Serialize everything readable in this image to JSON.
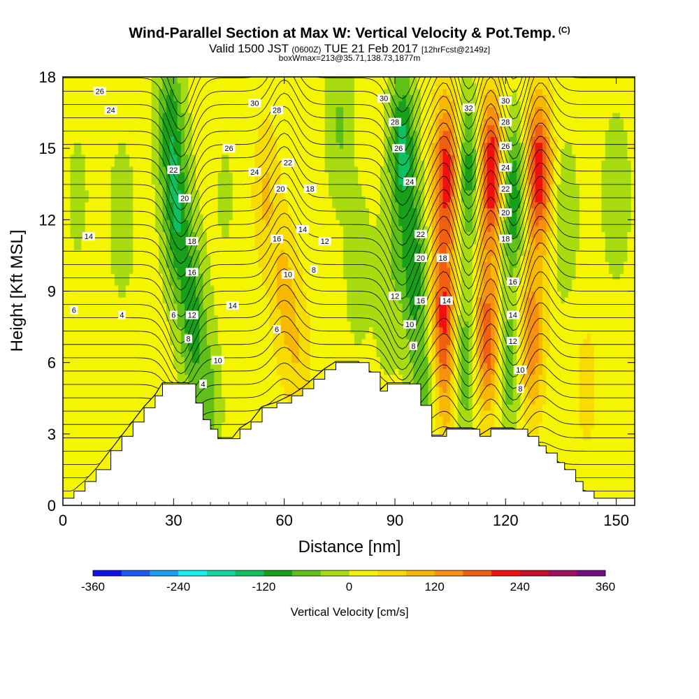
{
  "header": {
    "title": "Wind-Parallel Section at Max W: Vertical Velocity & Pot.Temp.",
    "title_mark": "(C)",
    "valid_a": "Valid 1500 JST",
    "valid_b": "(0600Z)",
    "valid_c": "TUE 21 Feb 2017",
    "valid_d": "[12hrFcst@2149z]",
    "subtitle": "boxWmax=213@35.71,138.73,1877m"
  },
  "chart_data": {
    "type": "heatmap",
    "xlabel": "Distance [nm]",
    "ylabel": "Height [Kft MSL]",
    "xlim": [
      0,
      155
    ],
    "ylim": [
      0,
      18
    ],
    "x_ticks": [
      0,
      30,
      60,
      90,
      120,
      150
    ],
    "y_ticks": [
      0,
      3,
      6,
      9,
      12,
      15,
      18
    ],
    "colorbar": {
      "label": "Vertical Velocity [cm/s]",
      "range": [
        -360,
        360
      ],
      "tick_values": [
        -360,
        -240,
        -120,
        0,
        120,
        240,
        360
      ],
      "tick_labels": [
        "-360",
        "-240",
        "-120",
        "0",
        "120",
        "240",
        "360"
      ],
      "colors": [
        "#1010e8",
        "#1a5cf0",
        "#1aa0f5",
        "#10f0f0",
        "#10d8a0",
        "#10c060",
        "#18a018",
        "#60c018",
        "#a8dc10",
        "#f5f500",
        "#f8dc00",
        "#f8b800",
        "#f89010",
        "#f06010",
        "#f01010",
        "#c8102c",
        "#a01060",
        "#701080"
      ]
    },
    "terrain_kft": [
      [
        0,
        0.3
      ],
      [
        3,
        0.6
      ],
      [
        6,
        1.0
      ],
      [
        9,
        1.5
      ],
      [
        13,
        2.3
      ],
      [
        16,
        2.9
      ],
      [
        19,
        3.5
      ],
      [
        22,
        4.1
      ],
      [
        25,
        4.6
      ],
      [
        27,
        5.1
      ],
      [
        30,
        5.1
      ],
      [
        34,
        5.1
      ],
      [
        36,
        4.3
      ],
      [
        38,
        3.6
      ],
      [
        40,
        3.2
      ],
      [
        42,
        2.8
      ],
      [
        46,
        2.8
      ],
      [
        48,
        3.2
      ],
      [
        51,
        3.5
      ],
      [
        54,
        4.1
      ],
      [
        58,
        4.3
      ],
      [
        62,
        4.6
      ],
      [
        65,
        4.9
      ],
      [
        68,
        5.3
      ],
      [
        71,
        5.7
      ],
      [
        74,
        6.0
      ],
      [
        80,
        6.0
      ],
      [
        83,
        5.6
      ],
      [
        86,
        4.8
      ],
      [
        88,
        5.1
      ],
      [
        94,
        5.1
      ],
      [
        97,
        4.2
      ],
      [
        100,
        2.9
      ],
      [
        103,
        2.9
      ],
      [
        104,
        3.2
      ],
      [
        111,
        3.2
      ],
      [
        113,
        2.9
      ],
      [
        116,
        3.2
      ],
      [
        122,
        3.2
      ],
      [
        126,
        2.9
      ],
      [
        129,
        2.5
      ],
      [
        131,
        2.2
      ],
      [
        134,
        1.8
      ],
      [
        136,
        1.5
      ],
      [
        139,
        1.0
      ],
      [
        141,
        0.6
      ],
      [
        144,
        0.3
      ],
      [
        155,
        0.3
      ]
    ],
    "w_field": {
      "background": 15,
      "features": [
        {
          "x": 4,
          "z": 13,
          "w": -25
        },
        {
          "x": 8,
          "z": 4,
          "w": 25
        },
        {
          "x": 16,
          "z": 12,
          "w": -40
        },
        {
          "x": 29,
          "z": 16,
          "w": -110
        },
        {
          "x": 31,
          "z": 12,
          "w": -120
        },
        {
          "x": 35,
          "z": 8,
          "w": -110
        },
        {
          "x": 39,
          "z": 4,
          "w": -80
        },
        {
          "x": 44,
          "z": 13,
          "w": -20
        },
        {
          "x": 55,
          "z": 13,
          "w": 70
        },
        {
          "x": 60,
          "z": 9,
          "w": 75
        },
        {
          "x": 64,
          "z": 6,
          "w": 55
        },
        {
          "x": 75,
          "z": 16,
          "w": -60
        },
        {
          "x": 80,
          "z": 10,
          "w": -40
        },
        {
          "x": 88,
          "z": 9,
          "w": -50
        },
        {
          "x": 92,
          "z": 15,
          "w": -150
        },
        {
          "x": 95,
          "z": 10,
          "w": -120
        },
        {
          "x": 98,
          "z": 5,
          "w": -90
        },
        {
          "x": 104,
          "z": 14,
          "w": 210
        },
        {
          "x": 103,
          "z": 8,
          "w": 190
        },
        {
          "x": 104,
          "z": 4,
          "w": 60
        },
        {
          "x": 110,
          "z": 14,
          "w": -130
        },
        {
          "x": 109,
          "z": 6,
          "w": -100
        },
        {
          "x": 116,
          "z": 14,
          "w": 240
        },
        {
          "x": 115,
          "z": 7,
          "w": 180
        },
        {
          "x": 122,
          "z": 13,
          "w": -140
        },
        {
          "x": 121,
          "z": 6,
          "w": -90
        },
        {
          "x": 129,
          "z": 14,
          "w": 220
        },
        {
          "x": 127,
          "z": 7,
          "w": 140
        },
        {
          "x": 136,
          "z": 12,
          "w": -50
        },
        {
          "x": 142,
          "z": 5,
          "w": 40
        },
        {
          "x": 150,
          "z": 13,
          "w": -50
        }
      ]
    },
    "theta_labels": [
      {
        "x": 10,
        "z": 17.4,
        "text": "26"
      },
      {
        "x": 13,
        "z": 16.6,
        "text": "24"
      },
      {
        "x": 7,
        "z": 11.3,
        "text": "14"
      },
      {
        "x": 3,
        "z": 8.2,
        "text": "6"
      },
      {
        "x": 16,
        "z": 8.0,
        "text": "4"
      },
      {
        "x": 30,
        "z": 14.1,
        "text": "22"
      },
      {
        "x": 33,
        "z": 12.9,
        "text": "20"
      },
      {
        "x": 35,
        "z": 11.1,
        "text": "18"
      },
      {
        "x": 35,
        "z": 9.8,
        "text": "16"
      },
      {
        "x": 30,
        "z": 8.0,
        "text": "6"
      },
      {
        "x": 35,
        "z": 8.0,
        "text": "12"
      },
      {
        "x": 34,
        "z": 7.0,
        "text": "8"
      },
      {
        "x": 42,
        "z": 6.1,
        "text": "10"
      },
      {
        "x": 38,
        "z": 5.1,
        "text": "4"
      },
      {
        "x": 52,
        "z": 16.9,
        "text": "30"
      },
      {
        "x": 58,
        "z": 16.6,
        "text": "28"
      },
      {
        "x": 45,
        "z": 15.0,
        "text": "26"
      },
      {
        "x": 52,
        "z": 14.0,
        "text": "24"
      },
      {
        "x": 61,
        "z": 14.4,
        "text": "22"
      },
      {
        "x": 59,
        "z": 13.3,
        "text": "20"
      },
      {
        "x": 67,
        "z": 13.3,
        "text": "18"
      },
      {
        "x": 58,
        "z": 11.2,
        "text": "16"
      },
      {
        "x": 65,
        "z": 11.6,
        "text": "14"
      },
      {
        "x": 71,
        "z": 11.1,
        "text": "12"
      },
      {
        "x": 61,
        "z": 9.7,
        "text": "10"
      },
      {
        "x": 68,
        "z": 9.9,
        "text": "8"
      },
      {
        "x": 46,
        "z": 8.4,
        "text": "14"
      },
      {
        "x": 58,
        "z": 7.4,
        "text": "6"
      },
      {
        "x": 87,
        "z": 17.1,
        "text": "30"
      },
      {
        "x": 90,
        "z": 16.1,
        "text": "28"
      },
      {
        "x": 91,
        "z": 15.0,
        "text": "26"
      },
      {
        "x": 94,
        "z": 13.6,
        "text": "24"
      },
      {
        "x": 97,
        "z": 11.4,
        "text": "22"
      },
      {
        "x": 97,
        "z": 10.4,
        "text": "20"
      },
      {
        "x": 103,
        "z": 10.4,
        "text": "18"
      },
      {
        "x": 90,
        "z": 8.8,
        "text": "12"
      },
      {
        "x": 97,
        "z": 8.6,
        "text": "16"
      },
      {
        "x": 104,
        "z": 8.6,
        "text": "14"
      },
      {
        "x": 94,
        "z": 7.6,
        "text": "10"
      },
      {
        "x": 95,
        "z": 6.7,
        "text": "8"
      },
      {
        "x": 110,
        "z": 16.7,
        "text": "32"
      },
      {
        "x": 120,
        "z": 17.0,
        "text": "30"
      },
      {
        "x": 120,
        "z": 16.1,
        "text": "28"
      },
      {
        "x": 120,
        "z": 15.1,
        "text": "26"
      },
      {
        "x": 120,
        "z": 14.2,
        "text": "24"
      },
      {
        "x": 120,
        "z": 13.3,
        "text": "22"
      },
      {
        "x": 120,
        "z": 12.3,
        "text": "20"
      },
      {
        "x": 120,
        "z": 11.2,
        "text": "18"
      },
      {
        "x": 122,
        "z": 9.4,
        "text": "16"
      },
      {
        "x": 122,
        "z": 8.0,
        "text": "14"
      },
      {
        "x": 122,
        "z": 6.9,
        "text": "12"
      },
      {
        "x": 124,
        "z": 5.7,
        "text": "10"
      },
      {
        "x": 124,
        "z": 4.9,
        "text": "8"
      }
    ]
  }
}
